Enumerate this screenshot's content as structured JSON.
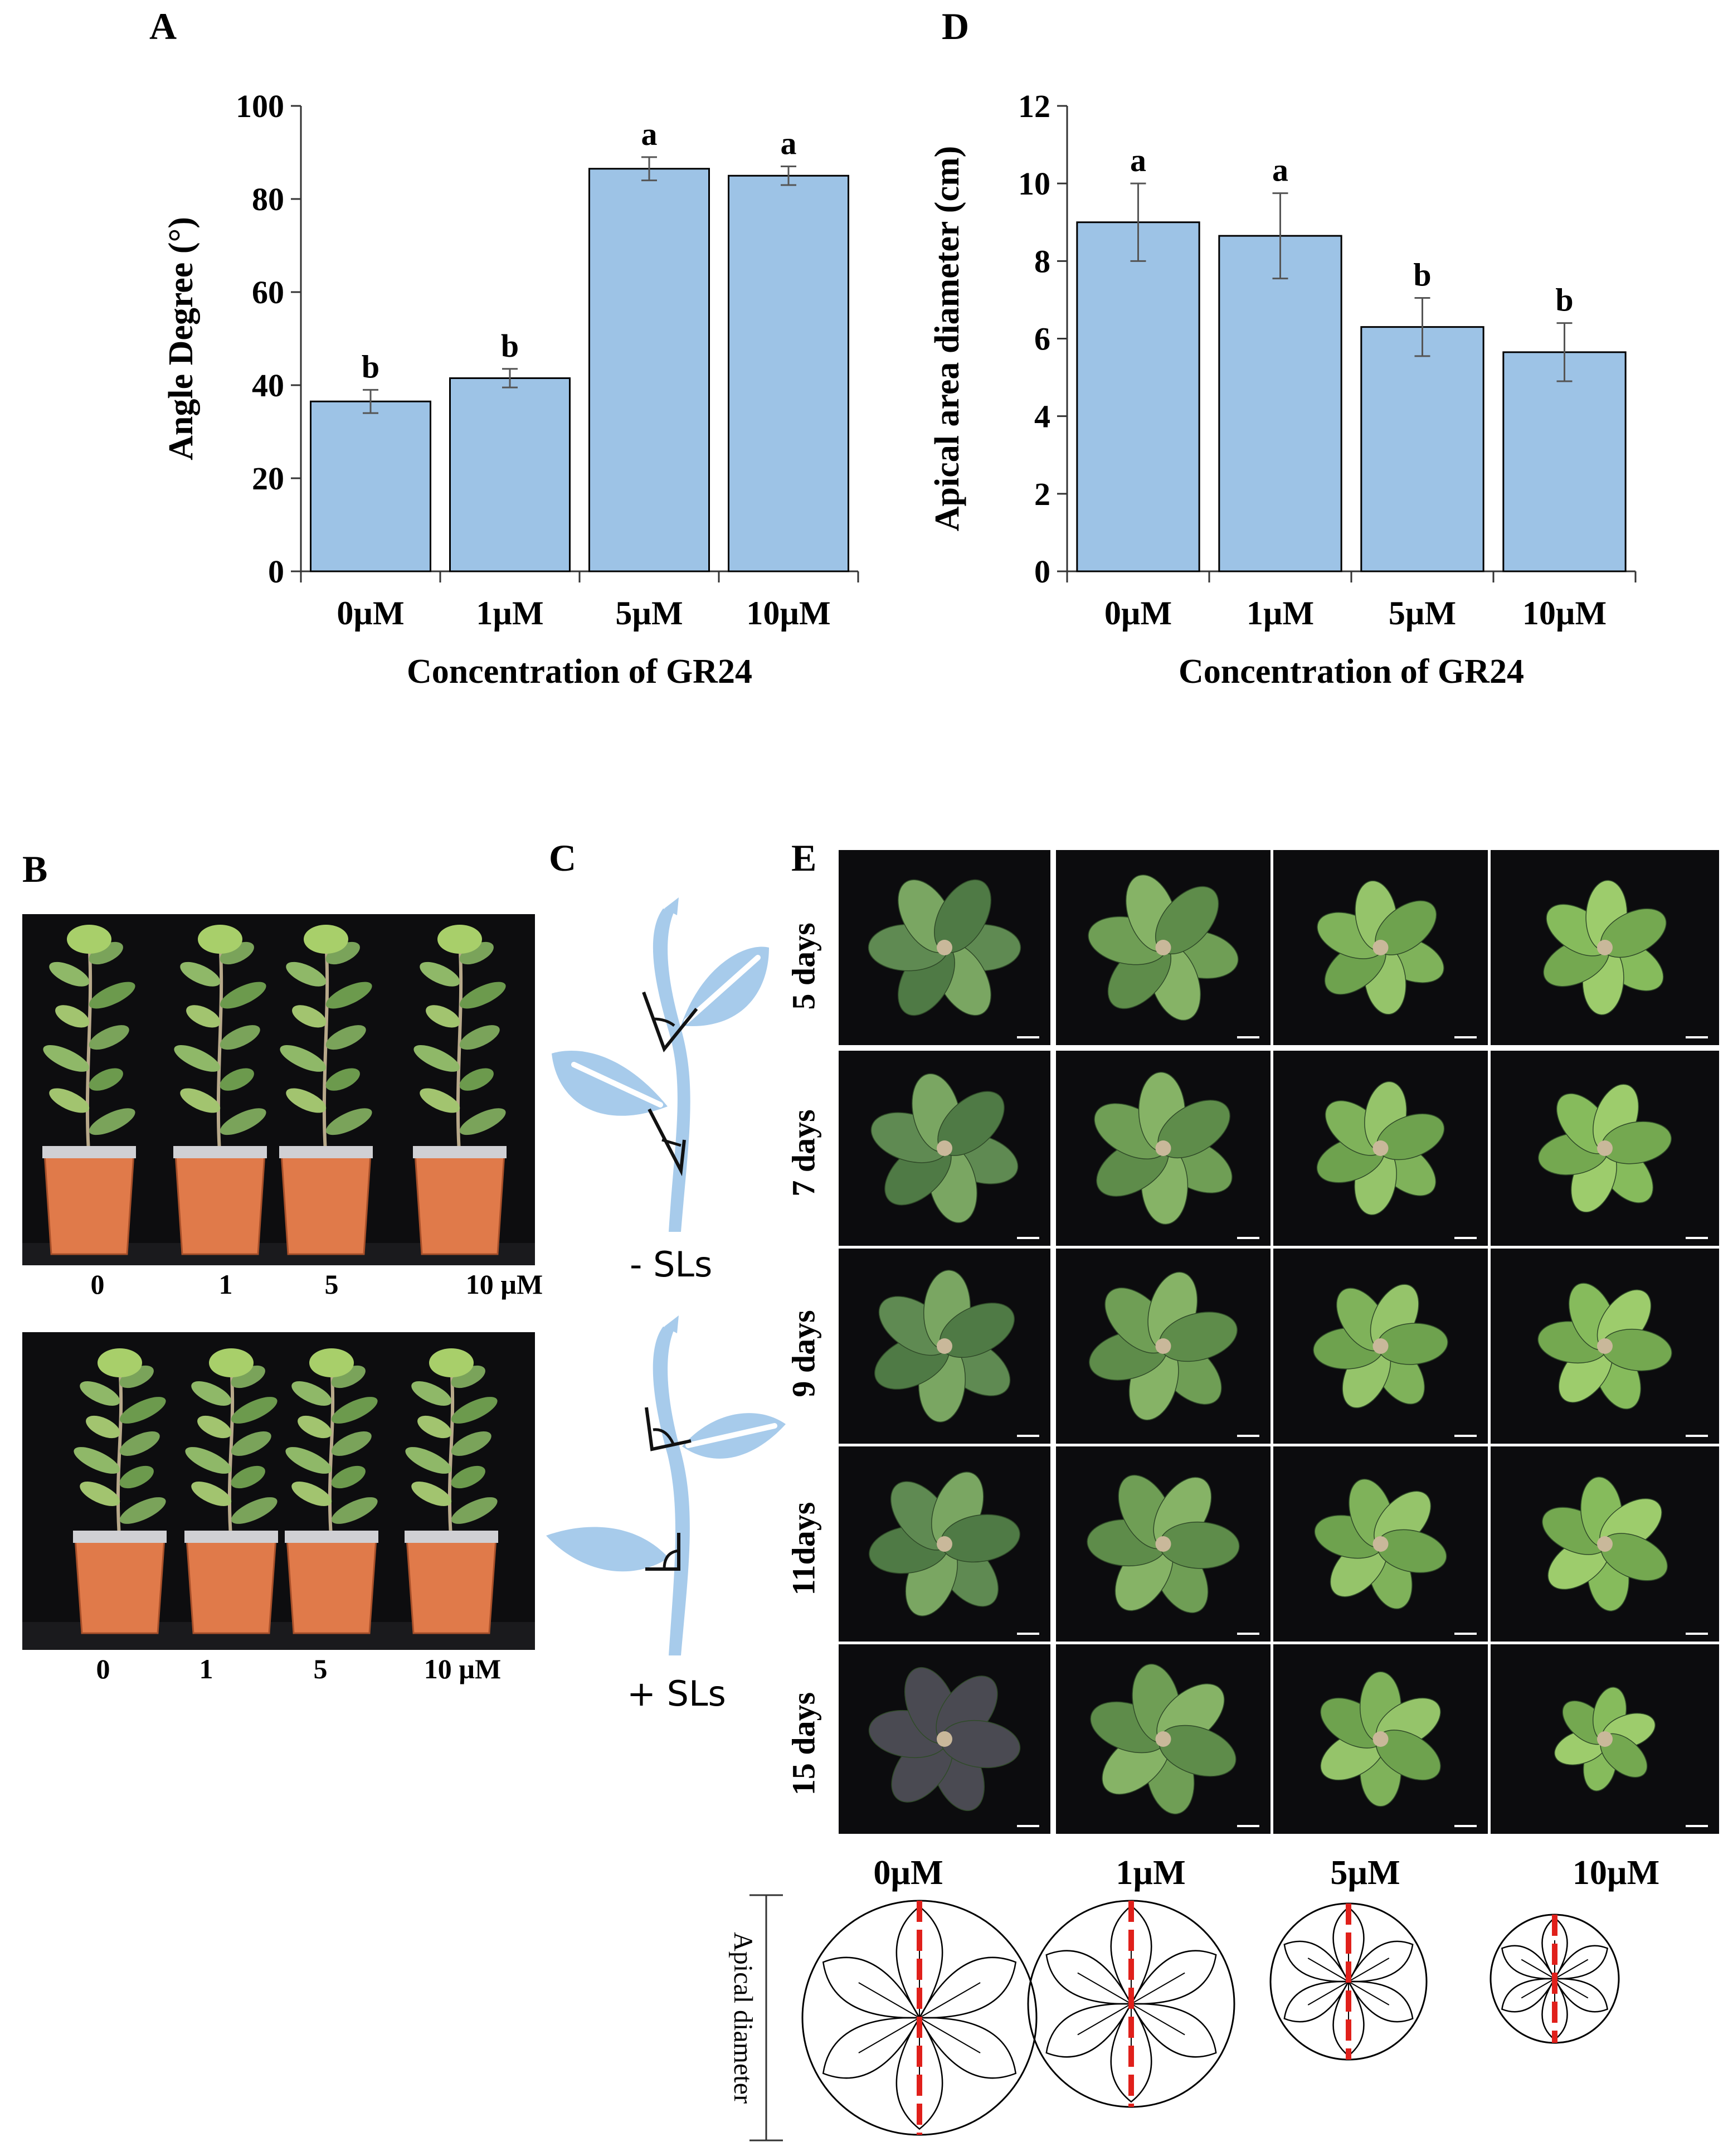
{
  "panel_letters": {
    "a": "A",
    "b": "B",
    "c": "C",
    "d": "D",
    "e": "E"
  },
  "chart_data": [
    {
      "id": "A",
      "type": "bar",
      "categories": [
        "0µM",
        "1µM",
        "5µM",
        "10µM"
      ],
      "values": [
        36.5,
        41.5,
        86.5,
        85
      ],
      "errors": [
        2.5,
        2,
        2.5,
        2
      ],
      "significance": [
        "b",
        "b",
        "a",
        "a"
      ],
      "xlabel": "Concentration of GR24",
      "ylabel": "Angle Degree (°)",
      "ylim": [
        0,
        100
      ],
      "yticks": [
        0,
        20,
        40,
        60,
        80,
        100
      ],
      "bar_color": "#9DC3E6"
    },
    {
      "id": "D",
      "type": "bar",
      "categories": [
        "0µM",
        "1µM",
        "5µM",
        "10µM"
      ],
      "values": [
        9,
        8.65,
        6.3,
        5.65
      ],
      "errors": [
        1,
        1.1,
        0.75,
        0.75
      ],
      "significance": [
        "a",
        "a",
        "b",
        "b"
      ],
      "xlabel": "Concentration of GR24",
      "ylabel": "Apical area diameter (cm)",
      "ylim": [
        0,
        12
      ],
      "yticks": [
        0,
        2,
        4,
        6,
        8,
        10,
        12
      ],
      "bar_color": "#9DC3E6"
    }
  ],
  "panel_b": {
    "top_labels": [
      "0",
      "1",
      "5",
      "10 µM"
    ],
    "bottom_labels": [
      "0",
      "1",
      "5",
      "10 µM"
    ]
  },
  "panel_c": {
    "minus_label": "- SLs",
    "plus_label": "+ SLs",
    "leaf_color": "#A7CBEB"
  },
  "panel_e": {
    "day_labels": [
      "5 days",
      "7 days",
      "9 days",
      "11days",
      "15 days"
    ],
    "concentrations": [
      "0µM",
      "1µM",
      "5µM",
      "10µM"
    ],
    "apical_label": "Apical diameter",
    "dash_color": "#E0201B"
  }
}
